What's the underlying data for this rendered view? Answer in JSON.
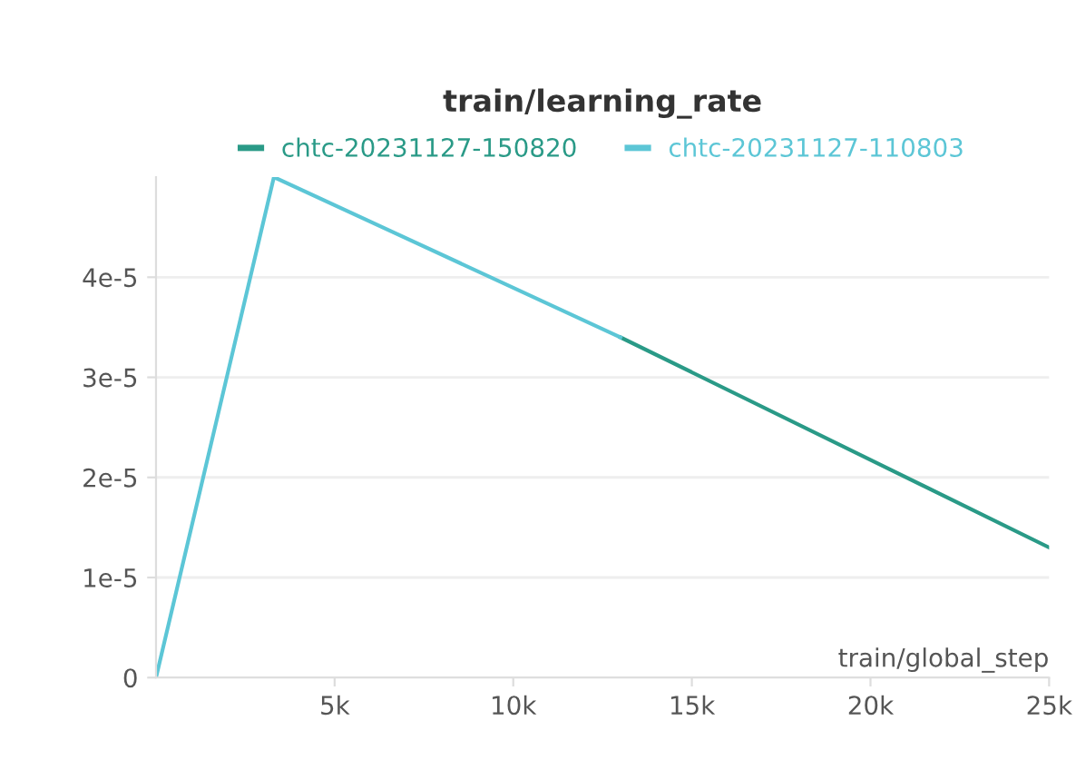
{
  "chart_data": {
    "type": "line",
    "title": "train/learning_rate",
    "xlabel": "train/global_step",
    "series": [
      {
        "name": "chtc-20231127-150820",
        "color": "#2a9a87",
        "x": [
          13000,
          25000
        ],
        "values": [
          3.4e-05,
          1.3e-05
        ]
      },
      {
        "name": "chtc-20231127-110803",
        "color": "#5cc6d6",
        "x": [
          0,
          3300,
          13000
        ],
        "values": [
          0,
          5e-05,
          3.4e-05
        ]
      }
    ],
    "xlim": [
      0,
      25000
    ],
    "ylim": [
      0,
      5e-05
    ],
    "xticks": [
      {
        "value": 5000,
        "label": "5k"
      },
      {
        "value": 10000,
        "label": "10k"
      },
      {
        "value": 15000,
        "label": "15k"
      },
      {
        "value": 20000,
        "label": "20k"
      },
      {
        "value": 25000,
        "label": "25k"
      }
    ],
    "yticks": [
      0,
      {
        "value": 1e-05,
        "label": "1e-5"
      },
      {
        "value": 2e-05,
        "label": "2e-5"
      },
      {
        "value": 3e-05,
        "label": "3e-5"
      },
      {
        "value": 4e-05,
        "label": "4e-5"
      }
    ],
    "grid": "y",
    "legend": "top",
    "line_style": "solid"
  }
}
